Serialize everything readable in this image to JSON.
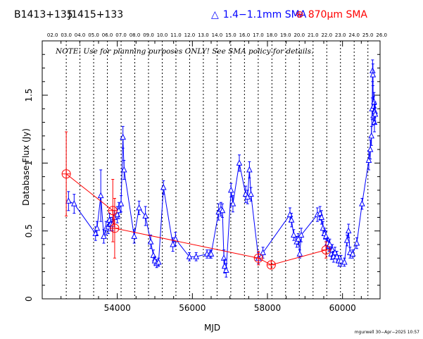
{
  "header": {
    "source_b": "B1413+135",
    "source_j": "J1415+133",
    "legend_blue_symbol": "△",
    "legend_blue": "1.4−1.1mm SMA",
    "legend_red_symbol": "⊕",
    "legend_red": "870µm SMA"
  },
  "note": "NOTE: Use for planning purposes ONLY!  See SMA policy for details.",
  "credit": "mgurwell 30−Apr−2025 10:57",
  "colors": {
    "blue": "#0000ff",
    "red": "#ff0000",
    "axis": "#000000"
  },
  "chart_data": {
    "type": "scatter",
    "xlabel": "MJD",
    "ylabel": "Database Flux (Jy)",
    "xlim": [
      52000,
      61000
    ],
    "ylim": [
      0,
      1.9
    ],
    "xticks": [
      54000,
      56000,
      58000,
      60000
    ],
    "yticks": [
      0,
      0.5,
      1,
      1.5
    ],
    "top_axis_labels": [
      "02.0",
      "03.0",
      "04.0",
      "05.0",
      "06.0",
      "07.0",
      "08.0",
      "09.0",
      "10.0",
      "11.0",
      "12.0",
      "13.0",
      "14.0",
      "15.0",
      "16.0",
      "17.0",
      "18.0",
      "19.0",
      "20.0",
      "21.0",
      "22.0",
      "23.0",
      "24.0",
      "25.0",
      "26.0"
    ],
    "year_lines_mjd": [
      52640,
      53005,
      53370,
      53736,
      54101,
      54466,
      54831,
      55197,
      55562,
      55927,
      56292,
      56658,
      57023,
      57388,
      57754,
      58119,
      58484,
      58849,
      59215,
      59580,
      59945,
      60310,
      60676,
      61041
    ],
    "top_axis_first_mjd": 52275,
    "series": [
      {
        "name": "1.4−1.1mm SMA",
        "color": "#0000ff",
        "marker": "triangle",
        "connected": true,
        "x": [
          52700,
          52850,
          53420,
          53460,
          53560,
          53640,
          53700,
          53760,
          53790,
          53820,
          53870,
          53920,
          54000,
          54040,
          54100,
          54150,
          54180,
          54450,
          54580,
          54750,
          54890,
          54960,
          55000,
          55050,
          55100,
          55230,
          55480,
          55550,
          55920,
          56100,
          56390,
          56470,
          56500,
          56700,
          56760,
          56800,
          56840,
          56860,
          56900,
          57030,
          57080,
          57250,
          57420,
          57470,
          57520,
          57560,
          57760,
          57880,
          58600,
          58640,
          58700,
          58780,
          58820,
          58860,
          58900,
          59330,
          59400,
          59440,
          59480,
          59520,
          59560,
          59600,
          59640,
          59660,
          59700,
          59730,
          59760,
          59800,
          59850,
          59900,
          59960,
          60050,
          60120,
          60160,
          60200,
          60270,
          60380,
          60520,
          60700,
          60740,
          60770,
          60790,
          60800,
          60810,
          60820,
          60830,
          60840,
          60850,
          60860,
          60870
        ],
        "y": [
          0.72,
          0.7,
          0.48,
          0.52,
          0.76,
          0.46,
          0.52,
          0.53,
          0.58,
          0.55,
          0.55,
          0.6,
          0.62,
          0.65,
          0.7,
          1.19,
          0.95,
          0.46,
          0.67,
          0.61,
          0.42,
          0.32,
          0.28,
          0.26,
          0.27,
          0.82,
          0.4,
          0.44,
          0.31,
          0.31,
          0.33,
          0.33,
          0.33,
          0.64,
          0.66,
          0.65,
          0.3,
          0.24,
          0.21,
          0.8,
          0.7,
          1.0,
          0.77,
          0.75,
          0.95,
          0.77,
          0.3,
          0.34,
          0.62,
          0.58,
          0.47,
          0.42,
          0.44,
          0.33,
          0.47,
          0.62,
          0.63,
          0.6,
          0.52,
          0.48,
          0.46,
          0.41,
          0.39,
          0.4,
          0.33,
          0.36,
          0.31,
          0.34,
          0.31,
          0.28,
          0.28,
          0.27,
          0.43,
          0.5,
          0.34,
          0.33,
          0.41,
          0.7,
          1.02,
          1.1,
          1.2,
          1.4,
          1.68,
          1.65,
          1.35,
          1.42,
          1.45,
          1.3,
          1.38,
          1.36
        ],
        "yerr": [
          0.07,
          0.07,
          0.05,
          0.05,
          0.19,
          0.05,
          0.05,
          0.05,
          0.05,
          0.05,
          0.05,
          0.05,
          0.06,
          0.06,
          0.06,
          0.08,
          0.07,
          0.05,
          0.05,
          0.07,
          0.05,
          0.04,
          0.03,
          0.03,
          0.03,
          0.05,
          0.05,
          0.05,
          0.03,
          0.03,
          0.03,
          0.03,
          0.03,
          0.06,
          0.05,
          0.05,
          0.06,
          0.05,
          0.05,
          0.05,
          0.06,
          0.06,
          0.06,
          0.05,
          0.06,
          0.05,
          0.04,
          0.04,
          0.05,
          0.05,
          0.04,
          0.04,
          0.04,
          0.03,
          0.05,
          0.05,
          0.05,
          0.05,
          0.05,
          0.04,
          0.04,
          0.04,
          0.04,
          0.04,
          0.04,
          0.04,
          0.04,
          0.04,
          0.04,
          0.04,
          0.04,
          0.03,
          0.04,
          0.05,
          0.04,
          0.03,
          0.04,
          0.04,
          0.07,
          0.07,
          0.07,
          0.08,
          0.08,
          0.08,
          0.07,
          0.07,
          0.07,
          0.07,
          0.07,
          0.07
        ]
      },
      {
        "name": "870µm SMA",
        "color": "#ff0000",
        "marker": "circle-plus",
        "connected": true,
        "x": [
          52640,
          53880,
          53930,
          57760,
          58100,
          59560
        ],
        "y": [
          0.92,
          0.65,
          0.52,
          0.3,
          0.25,
          0.36
        ],
        "yerr": [
          0.31,
          0.23,
          0.22,
          0.05,
          0.03,
          0.06
        ]
      }
    ]
  }
}
